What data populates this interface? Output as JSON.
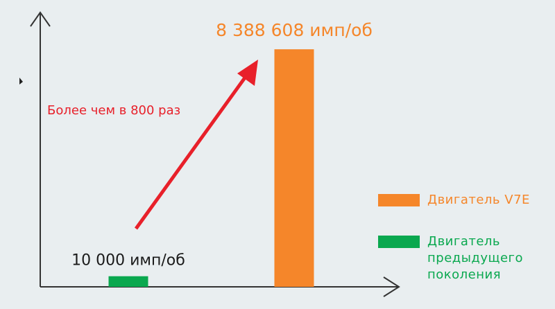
{
  "chart_data": {
    "type": "bar",
    "annotation": "Более чем в 800 раз",
    "categories": [
      null,
      null
    ],
    "series": [
      {
        "name": "Двигатель предыдущего поколения",
        "color": "#0aa84f",
        "label_color": "#1a1a1a",
        "values": [
          10000,
          null
        ],
        "value_labels": [
          "10 000 имп/об",
          null
        ]
      },
      {
        "name": "Двигатель V7E",
        "color": "#f5862a",
        "label_color": "#f5862a",
        "values": [
          null,
          8388608
        ],
        "value_labels": [
          null,
          "8 388 608 имп/об"
        ]
      }
    ],
    "log_scale": true,
    "ylim": [
      7300,
      25000000
    ]
  }
}
